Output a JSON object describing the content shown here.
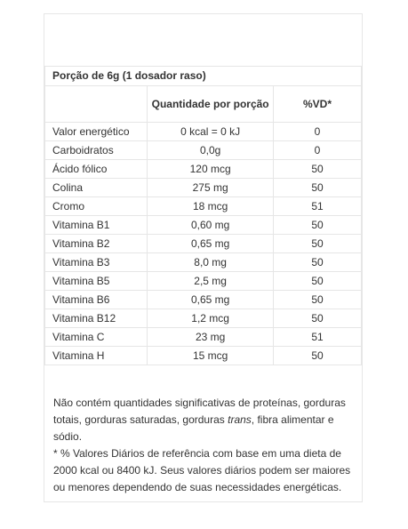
{
  "table": {
    "portion_label": "Porção de 6g (1 dosador raso)",
    "headers": {
      "quantity": "Quantidade por porção",
      "vd": "%VD*"
    },
    "rows": [
      {
        "name": "Valor energético",
        "quantity": "0 kcal = 0 kJ",
        "vd": "0"
      },
      {
        "name": "Carboidratos",
        "quantity": "0,0g",
        "vd": "0"
      },
      {
        "name": "Ácido fólico",
        "quantity": "120 mcg",
        "vd": "50"
      },
      {
        "name": "Colina",
        "quantity": "275 mg",
        "vd": "50"
      },
      {
        "name": "Cromo",
        "quantity": "18 mcg",
        "vd": "51"
      },
      {
        "name": "Vitamina B1",
        "quantity": "0,60 mg",
        "vd": "50"
      },
      {
        "name": "Vitamina B2",
        "quantity": "0,65 mg",
        "vd": "50"
      },
      {
        "name": "Vitamina B3",
        "quantity": "8,0 mg",
        "vd": "50"
      },
      {
        "name": "Vitamina B5",
        "quantity": "2,5 mg",
        "vd": "50"
      },
      {
        "name": "Vitamina B6",
        "quantity": "0,65 mg",
        "vd": "50"
      },
      {
        "name": "Vitamina B12",
        "quantity": "1,2 mcg",
        "vd": "50"
      },
      {
        "name": "Vitamina C",
        "quantity": "23 mg",
        "vd": "51"
      },
      {
        "name": "Vitamina H",
        "quantity": "15 mcg",
        "vd": "50"
      }
    ]
  },
  "notes": {
    "line1_before": "Não contém quantidades significativas de proteínas, gorduras totais, gorduras saturadas, gorduras ",
    "line1_italic": "trans",
    "line1_after": ", fibra alimentar e sódio.",
    "line2": "* % Valores Diários de referência com base em uma dieta de 2000 kcal ou 8400 kJ. Seus valores diários podem ser maiores ou menores dependendo de suas necessidades energéticas."
  }
}
